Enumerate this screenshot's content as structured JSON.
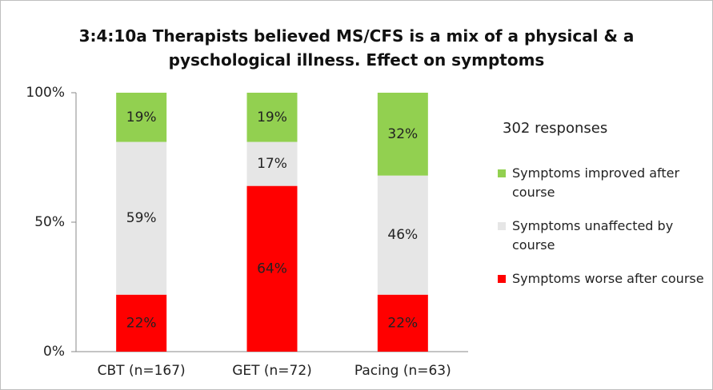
{
  "chart_data": {
    "type": "stacked_bar",
    "title": "3:4:10a Therapists believed MS/CFS is a mix of a physical & a pyschological illness. Effect on symptoms",
    "annotation": "302 responses",
    "categories": [
      "CBT (n=167)",
      "GET (n=72)",
      "Pacing (n=63)"
    ],
    "series": [
      {
        "name": "Symptoms worse after course",
        "color": "#ff0000",
        "values": [
          22,
          64,
          22
        ],
        "value_labels": [
          "22%",
          "64%",
          "22%"
        ]
      },
      {
        "name": "Symptoms unaffected by course",
        "color": "#e6e6e6",
        "values": [
          59,
          17,
          46
        ],
        "value_labels": [
          "59%",
          "17%",
          "46%"
        ]
      },
      {
        "name": "Symptoms improved after course",
        "color": "#92d050",
        "values": [
          19,
          19,
          32
        ],
        "value_labels": [
          "19%",
          "19%",
          "32%"
        ]
      }
    ],
    "ylim": [
      0,
      100
    ],
    "yticks": [
      {
        "value": 0,
        "label": "0%"
      },
      {
        "value": 50,
        "label": "50%"
      },
      {
        "value": 100,
        "label": "100%"
      }
    ],
    "grid": false,
    "legend": "right"
  }
}
